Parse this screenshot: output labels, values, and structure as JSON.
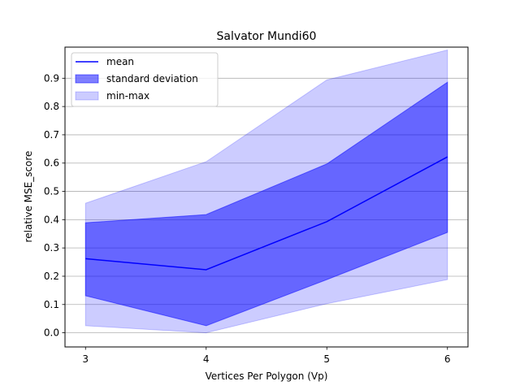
{
  "chart_data": {
    "type": "line",
    "title": "Salvator Mundi60",
    "xlabel": "Vertices Per Polygon (Vp)",
    "ylabel": "relative MSE_score",
    "x": [
      3,
      4,
      5,
      6
    ],
    "x_ticks": [
      "3",
      "4",
      "5",
      "6"
    ],
    "y_ticks": [
      "0.0",
      "0.1",
      "0.2",
      "0.3",
      "0.4",
      "0.5",
      "0.6",
      "0.7",
      "0.8",
      "0.9"
    ],
    "xlim": [
      2.83,
      6.17
    ],
    "ylim": [
      -0.05,
      1.01
    ],
    "grid": "horizontal",
    "legend_position": "upper-left",
    "series": [
      {
        "name": "mean",
        "kind": "line",
        "color": "#0000ff",
        "values": [
          0.262,
          0.223,
          0.393,
          0.622
        ]
      },
      {
        "name": "standard deviation",
        "kind": "band",
        "color": "#0000ff",
        "opacity": 0.5,
        "lower": [
          0.131,
          0.025,
          0.188,
          0.355
        ],
        "upper": [
          0.389,
          0.418,
          0.597,
          0.886
        ]
      },
      {
        "name": "min-max",
        "kind": "band",
        "color": "#0000ff",
        "opacity": 0.2,
        "lower": [
          0.025,
          0.0,
          0.103,
          0.188
        ],
        "upper": [
          0.458,
          0.605,
          0.894,
          1.0
        ]
      }
    ]
  }
}
